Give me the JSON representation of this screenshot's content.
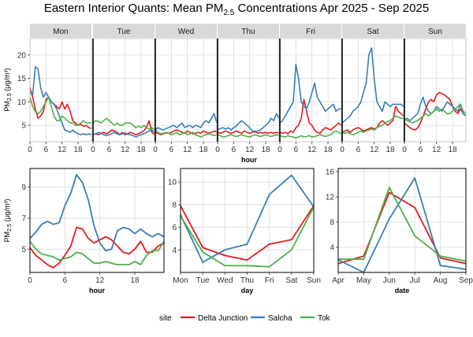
{
  "title": {
    "pre": "Eastern Interior Quants: Mean PM",
    "sub": "2.5",
    "post": " Concentrations Apr 2025 - Sep 2025"
  },
  "ylabel": {
    "pre": "PM",
    "sub": "2.5",
    "post": " (μg/m³)"
  },
  "legend": {
    "title": "site",
    "items": [
      "Delta Junction",
      "Salcha",
      "Tok"
    ]
  },
  "colors": {
    "Delta Junction": "#e41a1c",
    "Salcha": "#377eb8",
    "Tok": "#4daf4a"
  },
  "chart_data": [
    {
      "type": "line",
      "name": "weekday-hour",
      "xlabel": "hour",
      "facets": [
        "Mon",
        "Tue",
        "Wed",
        "Thu",
        "Fri",
        "Sat",
        "Sun"
      ],
      "xlim": [
        0,
        23
      ],
      "x_ticks": [
        0,
        6,
        12,
        18
      ],
      "ylim": [
        1.5,
        23.5
      ],
      "y_ticks": [
        5,
        10,
        15,
        20
      ],
      "series": {
        "Delta Junction": [
          [
            13,
            11,
            8.5,
            6.5,
            7,
            8,
            10.5,
            11,
            10,
            9.5,
            9,
            8.5,
            10,
            8.5,
            9.5,
            8,
            6,
            5.5,
            5,
            5.2,
            4.8,
            5,
            4.5,
            4.3
          ],
          [
            3,
            3.2,
            3,
            3.3,
            3.5,
            3.2,
            3.5,
            4,
            3.8,
            3.5,
            3,
            3.5,
            3,
            3.2,
            3.5,
            3.3,
            3,
            3.2,
            3.5,
            3.8,
            4.5,
            6,
            3.5,
            3
          ],
          [
            3.5,
            3.3,
            3,
            3.2,
            3.4,
            3.3,
            3.5,
            3.8,
            4,
            3.8,
            3.5,
            3.3,
            3.8,
            3.5,
            3.2,
            3.3,
            3.5,
            3.3,
            3.8,
            3.5,
            3.3,
            3.5,
            3.8,
            3.5
          ],
          [
            3.5,
            3.3,
            3.5,
            3.8,
            3.5,
            3.3,
            3.5,
            3.8,
            3.5,
            3.3,
            3.8,
            3.5,
            3.3,
            3.5,
            3.8,
            3.3,
            3.5,
            3.3,
            3.5,
            3.3,
            3.5,
            3.3,
            3.5,
            3.3
          ],
          [
            3.5,
            3.3,
            3.5,
            3.2,
            3.8,
            3.5,
            4.5,
            5,
            6.5,
            10.5,
            8,
            5.5,
            5,
            4,
            3.5,
            3.3,
            4,
            4.5,
            4.3,
            4,
            4.5,
            5,
            5.5,
            5
          ],
          [
            3.5,
            3.8,
            4,
            3.5,
            4,
            4.3,
            4.5,
            4.2,
            3.8,
            4,
            4.3,
            4.5,
            4.2,
            4.5,
            5.5,
            6,
            5.5,
            5,
            5.5,
            6,
            9,
            8,
            7.5,
            7
          ],
          [
            5.5,
            5,
            4.5,
            4.2,
            4,
            4.5,
            5.5,
            7,
            8.5,
            10,
            10.5,
            10,
            11.5,
            12,
            11.8,
            11.5,
            11,
            10.5,
            9,
            8,
            7.5,
            8.5,
            7.5,
            7
          ]
        ],
        "Salcha": [
          [
            12,
            11.5,
            17.5,
            17,
            13,
            11,
            12,
            11,
            10,
            9.5,
            8.5,
            7,
            5.5,
            4,
            3.8,
            3.5,
            4,
            3.5,
            3.2,
            3,
            3.2,
            3,
            3.2,
            3
          ],
          [
            3,
            3.2,
            3.5,
            3.3,
            3,
            2.8,
            3,
            3.2,
            3.5,
            3.2,
            3,
            3.2,
            3.4,
            3.1,
            3,
            2.8,
            2.5,
            2.8,
            3,
            3.2,
            3.5,
            3.8,
            4,
            3.5
          ],
          [
            4,
            4.5,
            4.2,
            4,
            4.3,
            4.5,
            4.8,
            5,
            4.5,
            5,
            5.5,
            4.5,
            4.8,
            5,
            4.5,
            5,
            4.8,
            4.5,
            5.5,
            6,
            5.5,
            6.5,
            7.5,
            5.5
          ],
          [
            4,
            4.3,
            4.5,
            4.2,
            4.5,
            4,
            4.5,
            4.8,
            5.5,
            6,
            5.5,
            5,
            4.5,
            3.8,
            3.5,
            3.8,
            4,
            4.5,
            5,
            5.5,
            6.5,
            6,
            7.5,
            6.5
          ],
          [
            5.5,
            6,
            7,
            8,
            9,
            10,
            18,
            15,
            10,
            9,
            8.5,
            10,
            12,
            14,
            11,
            10,
            9,
            8,
            8.5,
            9,
            9.5,
            8,
            8.5,
            8.5
          ],
          [
            5.5,
            6,
            6.5,
            7,
            8,
            8.5,
            9,
            10,
            12,
            14,
            20,
            21.5,
            15,
            10,
            9,
            8,
            10,
            9.5,
            9,
            9.5,
            9.5,
            9.5,
            9.5,
            9
          ],
          [
            6,
            6.5,
            6,
            6.5,
            7,
            7.5,
            9.5,
            11,
            9,
            8,
            7.5,
            8,
            9,
            8.5,
            8,
            9,
            10,
            9.5,
            9,
            8.5,
            8,
            9.5,
            7.5,
            7
          ]
        ],
        "Tok": [
          [
            11,
            9,
            8,
            7.5,
            8,
            9,
            10,
            11,
            9,
            7,
            6,
            6,
            7,
            6.5,
            6,
            5.5,
            5.5,
            5,
            5,
            5.5,
            6,
            5.5,
            5.5,
            5.5
          ],
          [
            5.5,
            6,
            5.8,
            5.5,
            6,
            6.5,
            6,
            5.5,
            5,
            5.5,
            5,
            5,
            5.5,
            5.5,
            5.5,
            5,
            4.5,
            4.8,
            4.5,
            5,
            4.5,
            4.2,
            4.5,
            4
          ],
          [
            4,
            3.5,
            3.2,
            3.3,
            3.5,
            3.3,
            3,
            3.2,
            3.5,
            3,
            3.2,
            3.5,
            3,
            3.2,
            3.5,
            3,
            2.8,
            2.5,
            2.8,
            3,
            3.2,
            3,
            2.8,
            3
          ],
          [
            3,
            2.8,
            2.5,
            2.6,
            2.8,
            3,
            2.8,
            2.6,
            2.8,
            3,
            2.8,
            2.6,
            2.5,
            2.8,
            3,
            2.8,
            2.6,
            2.8,
            3,
            2.8,
            2.6,
            2.8,
            3,
            2.8
          ],
          [
            2.8,
            2.6,
            2.5,
            2.8,
            2.6,
            2.5,
            2.3,
            2.5,
            2.8,
            2.5,
            2.6,
            2.8,
            2.5,
            2.6,
            2.8,
            3,
            2.8,
            2.6,
            2.8,
            3,
            3.5,
            3.8,
            3.5,
            3.2
          ],
          [
            3.5,
            3.3,
            3.5,
            3.2,
            3,
            3.2,
            3.5,
            3.8,
            3.5,
            3.8,
            4,
            4.2,
            4,
            4.5,
            4.8,
            5,
            5.5,
            5.8,
            6,
            6.5,
            7,
            6.8,
            6.5,
            6.5
          ],
          [
            6.5,
            6,
            5.8,
            5.5,
            5.8,
            6,
            6.5,
            7,
            7.5,
            7,
            7.5,
            8,
            8.5,
            8,
            8.5,
            8,
            7.5,
            7.5,
            8,
            8.5,
            9,
            9.5,
            8,
            7.5
          ]
        ]
      }
    },
    {
      "type": "line",
      "name": "hour",
      "xlabel": "hour",
      "x": [
        0,
        1,
        2,
        3,
        4,
        5,
        6,
        7,
        8,
        9,
        10,
        11,
        12,
        13,
        14,
        15,
        16,
        17,
        18,
        19,
        20,
        21,
        22,
        23
      ],
      "xlim": [
        0,
        23
      ],
      "x_ticks": [
        0,
        6,
        12,
        18
      ],
      "ylim": [
        3.5,
        10.2
      ],
      "y_ticks": [
        5,
        7,
        9
      ],
      "series": {
        "Delta Junction": [
          5.1,
          4.6,
          4.3,
          4.0,
          3.8,
          4.1,
          4.6,
          5.2,
          6.4,
          6.3,
          5.7,
          5.4,
          5.6,
          5.8,
          5.6,
          5.2,
          4.8,
          4.7,
          5.0,
          5.5,
          4.8,
          4.8,
          5.2,
          5.4
        ],
        "Salcha": [
          5.7,
          6.1,
          6.6,
          6.8,
          6.6,
          6.7,
          7.8,
          8.6,
          9.8,
          9.3,
          8.2,
          6.5,
          5.4,
          4.9,
          5.0,
          6.2,
          6.4,
          6.3,
          6.0,
          6.3,
          6.0,
          5.8,
          6.0,
          5.8
        ],
        "Tok": [
          5.5,
          5.0,
          4.7,
          4.6,
          4.5,
          4.3,
          4.4,
          4.5,
          4.8,
          4.7,
          4.4,
          4.1,
          4.1,
          4.2,
          4.1,
          4.0,
          4.0,
          4.0,
          4.2,
          4.0,
          4.6,
          4.9,
          4.9,
          5.5
        ]
      }
    },
    {
      "type": "line",
      "name": "day",
      "xlabel": "day",
      "categories": [
        "Mon",
        "Tue",
        "Wed",
        "Thu",
        "Fri",
        "Sat",
        "Sun"
      ],
      "ylim": [
        2.0,
        11.2
      ],
      "y_ticks": [
        4,
        6,
        8,
        10
      ],
      "series": {
        "Delta Junction": [
          7.9,
          4.2,
          3.5,
          3.1,
          4.5,
          4.9,
          7.9
        ],
        "Salcha": [
          7.1,
          2.9,
          4.0,
          4.5,
          8.9,
          10.6,
          7.8
        ],
        "Tok": [
          7.0,
          3.8,
          2.6,
          2.6,
          2.5,
          4.0,
          7.8
        ]
      }
    },
    {
      "type": "line",
      "name": "date",
      "xlabel": "date",
      "categories": [
        "Apr",
        "May",
        "Jun",
        "Jul",
        "Aug",
        "Sep"
      ],
      "ylim": [
        0,
        16.5
      ],
      "y_ticks": [
        4,
        8,
        12,
        16
      ],
      "series": {
        "Delta Junction": [
          1.4,
          2.6,
          12.7,
          10.3,
          2.3,
          1.4
        ],
        "Salcha": [
          2.0,
          0.0,
          8.5,
          15.0,
          1.1,
          0.5
        ],
        "Tok": [
          2.1,
          2.1,
          13.5,
          5.8,
          2.6,
          1.8
        ]
      }
    }
  ]
}
